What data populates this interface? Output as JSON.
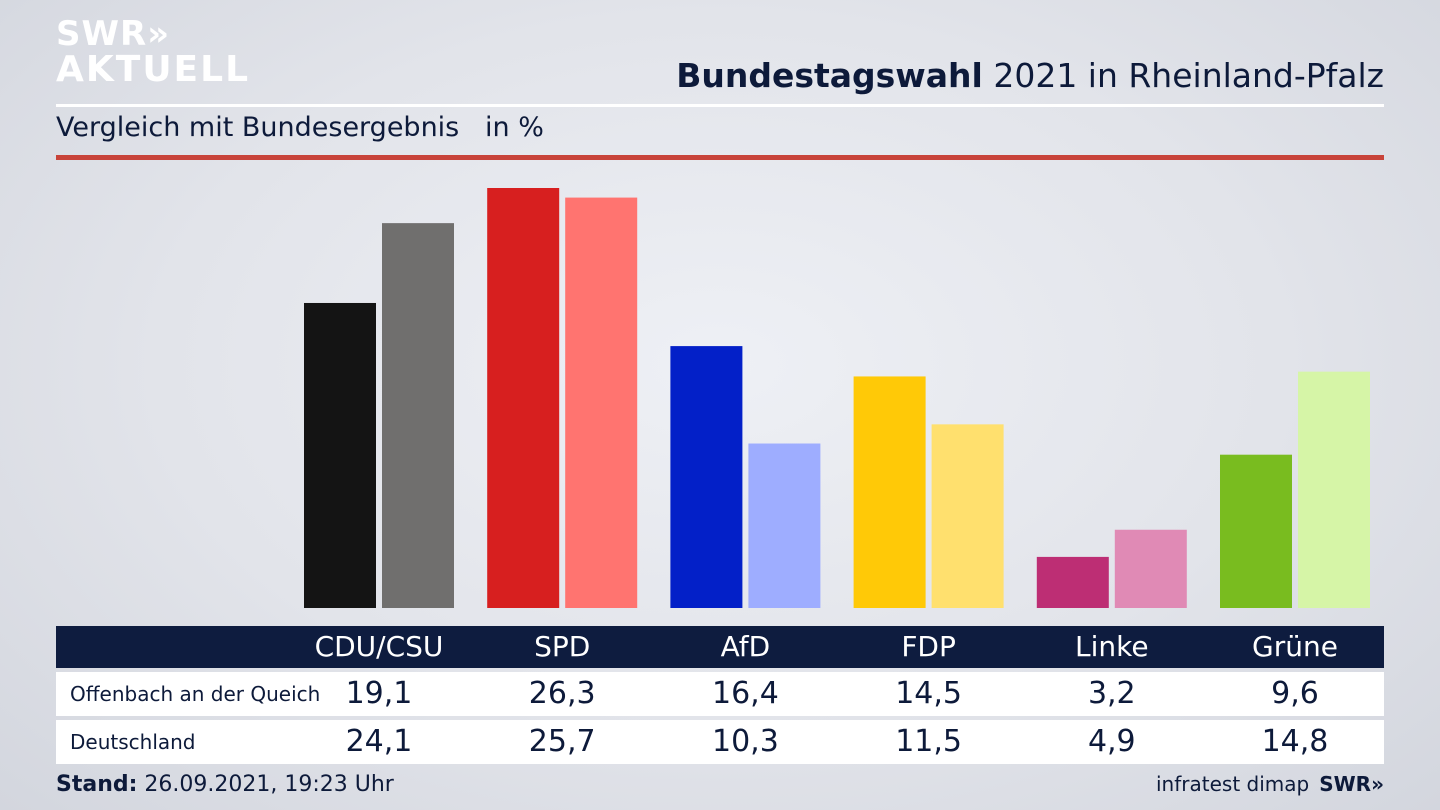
{
  "header": {
    "logo_line1": "SWR»",
    "logo_line2": "AKTUELL",
    "title_bold": "Bundestagswahl",
    "title_rest": " 2021 in Rheinland-Pfalz",
    "subtitle": "Vergleich mit Bundesergebnis   in %"
  },
  "footer": {
    "stand_label": "Stand:",
    "stand_value": " 26.09.2021, 19:23 Uhr",
    "source": "infratest dimap",
    "source_logo": "SWR»"
  },
  "chart_data": {
    "type": "bar",
    "categories": [
      "CDU/CSU",
      "SPD",
      "AfD",
      "FDP",
      "Linke",
      "Grüne"
    ],
    "series": [
      {
        "name": "Offenbach an der Queich",
        "values": [
          19.1,
          26.3,
          16.4,
          14.5,
          3.2,
          9.6
        ]
      },
      {
        "name": "Deutschland",
        "values": [
          24.1,
          25.7,
          10.3,
          11.5,
          4.9,
          14.8
        ]
      }
    ],
    "value_labels": [
      [
        "19,1",
        "26,3",
        "16,4",
        "14,5",
        "3,2",
        "9,6"
      ],
      [
        "24,1",
        "25,7",
        "10,3",
        "11,5",
        "4,9",
        "14,8"
      ]
    ],
    "colors": [
      [
        "#141414",
        "#706f6e"
      ],
      [
        "#d71f1f",
        "#ff7470"
      ],
      [
        "#0320c8",
        "#9eadff"
      ],
      [
        "#ffc907",
        "#ffe06e"
      ],
      [
        "#bd2e74",
        "#e08ab5"
      ],
      [
        "#79bc1f",
        "#d6f5a7"
      ]
    ],
    "ylim": [
      0,
      26.3
    ],
    "grid": false,
    "legend": "none"
  }
}
